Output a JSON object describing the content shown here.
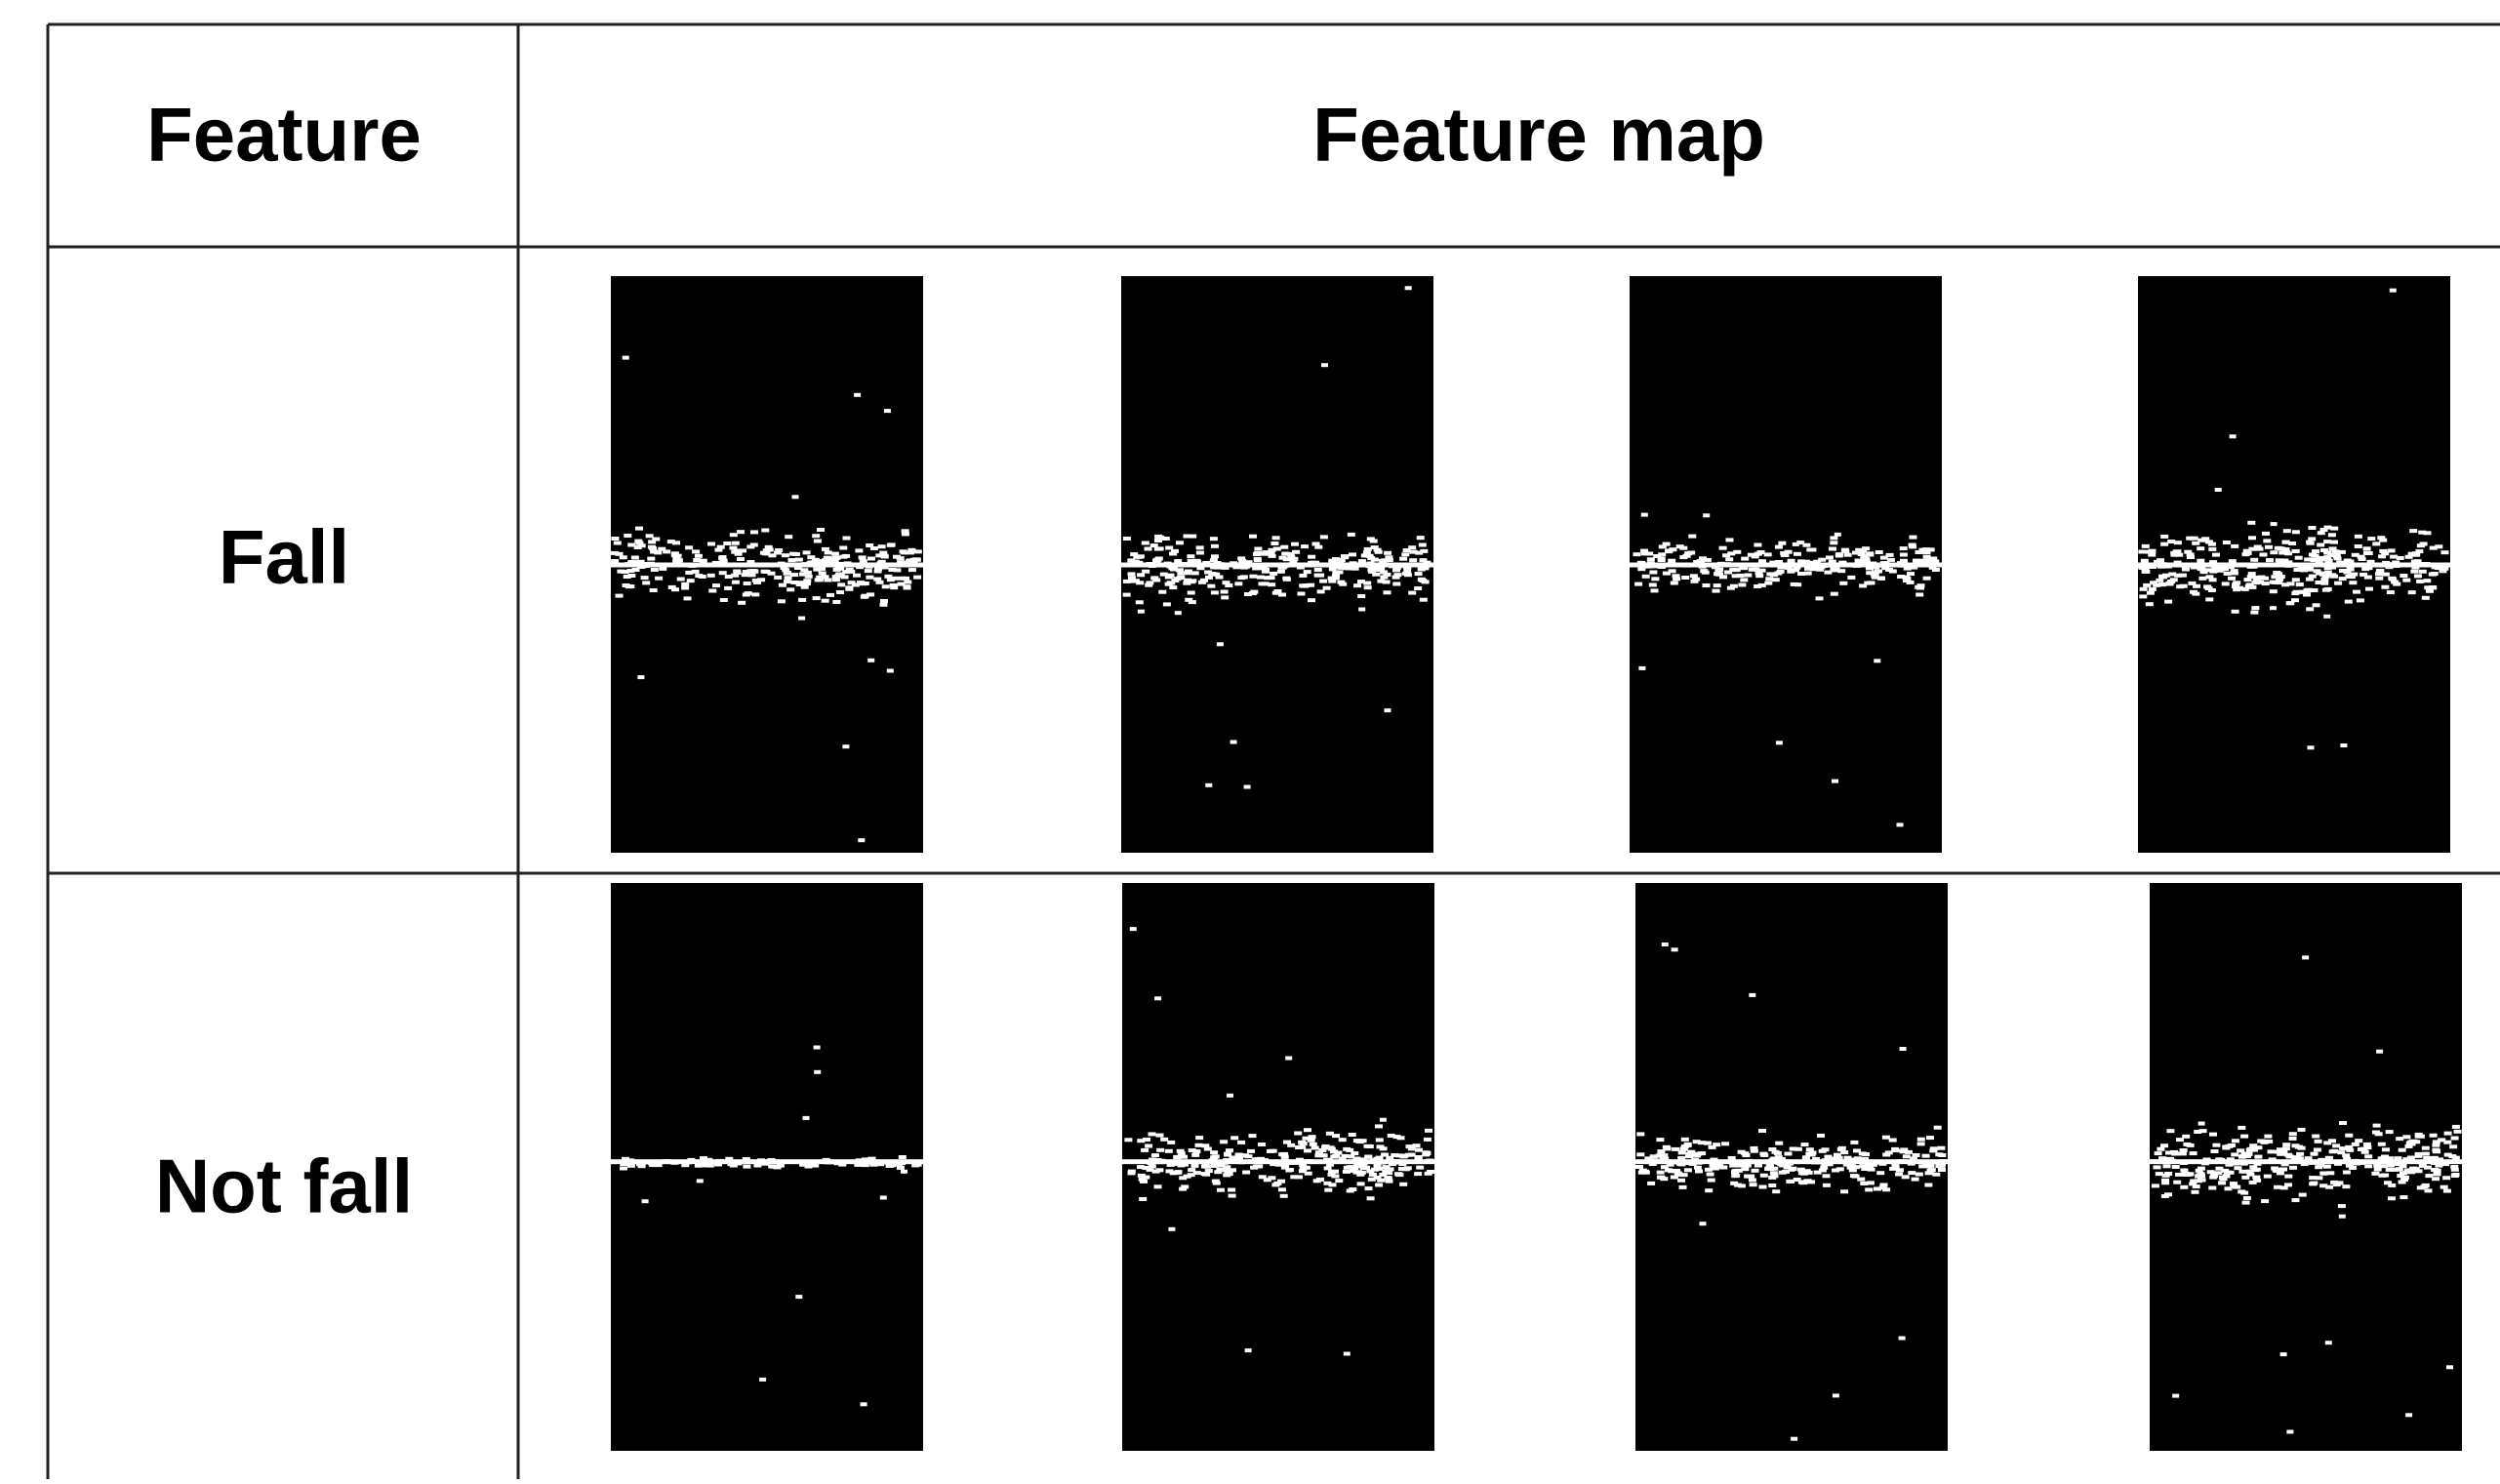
{
  "table": {
    "header": [
      "Feature",
      "Feature map"
    ],
    "rows": [
      [
        "Fall"
      ],
      [
        "Not fall"
      ]
    ]
  }
}
